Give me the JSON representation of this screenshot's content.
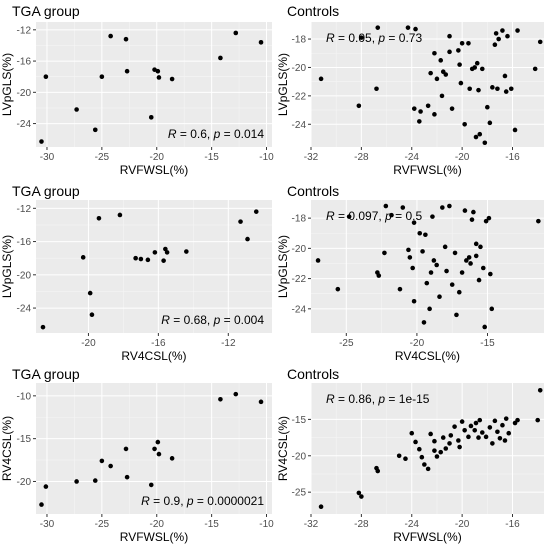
{
  "chart_data": [
    {
      "type": "scatter",
      "title": "TGA group",
      "xlabel": "RVFWSL(%)",
      "ylabel": "LVpGLS(%)",
      "xlim": [
        -31,
        -9.5
      ],
      "ylim": [
        -27,
        -11
      ],
      "xticks": [
        -30,
        -25,
        -20,
        -15,
        -10
      ],
      "yticks": [
        -24,
        -20,
        -16,
        -12
      ],
      "annotation": {
        "r": "0.6",
        "p": "0.014",
        "position": "bottom-right"
      },
      "points": [
        [
          -30.5,
          -26.3
        ],
        [
          -30.1,
          -18.0
        ],
        [
          -27.3,
          -22.2
        ],
        [
          -25.6,
          -24.8
        ],
        [
          -25.0,
          -18.0
        ],
        [
          -24.2,
          -12.8
        ],
        [
          -22.8,
          -13.2
        ],
        [
          -22.7,
          -17.3
        ],
        [
          -20.5,
          -23.2
        ],
        [
          -20.2,
          -17.1
        ],
        [
          -19.9,
          -17.3
        ],
        [
          -19.8,
          -18.1
        ],
        [
          -18.6,
          -18.3
        ],
        [
          -14.2,
          -15.6
        ],
        [
          -12.8,
          -12.4
        ],
        [
          -10.5,
          -13.6
        ]
      ]
    },
    {
      "type": "scatter",
      "title": "Controls",
      "xlabel": "RVFWSL(%)",
      "ylabel": "LVpGLS(%)",
      "xlim": [
        -32,
        -13.5
      ],
      "ylim": [
        -25.6,
        -16.8
      ],
      "xticks": [
        -32,
        -28,
        -24,
        -20,
        -16
      ],
      "yticks": [
        -24,
        -22,
        -20,
        -18
      ],
      "annotation": {
        "r": "0.05",
        "p": "0.73",
        "position": "top-left"
      },
      "points": [
        [
          -31.2,
          -20.8
        ],
        [
          -28.2,
          -22.7
        ],
        [
          -28.0,
          -17.9
        ],
        [
          -26.8,
          -21.5
        ],
        [
          -26.7,
          -17.2
        ],
        [
          -24.3,
          -17.2
        ],
        [
          -23.7,
          -17.3
        ],
        [
          -23.8,
          -22.9
        ],
        [
          -23.4,
          -23.8
        ],
        [
          -23.3,
          -23.1
        ],
        [
          -22.7,
          -22.7
        ],
        [
          -22.5,
          -20.4
        ],
        [
          -22.2,
          -23.3
        ],
        [
          -22.2,
          -19.0
        ],
        [
          -22.0,
          -20.8
        ],
        [
          -21.7,
          -19.5
        ],
        [
          -21.6,
          -22.0
        ],
        [
          -21.5,
          -20.3
        ],
        [
          -21.3,
          -20.5
        ],
        [
          -21.0,
          -18.9
        ],
        [
          -21.0,
          -17.8
        ],
        [
          -20.8,
          -22.9
        ],
        [
          -20.3,
          -18.8
        ],
        [
          -20.2,
          -19.8
        ],
        [
          -20.1,
          -21.1
        ],
        [
          -20.0,
          -18.3
        ],
        [
          -19.8,
          -24.0
        ],
        [
          -19.5,
          -18.3
        ],
        [
          -19.4,
          -21.5
        ],
        [
          -19.2,
          -20.1
        ],
        [
          -19.0,
          -20.0
        ],
        [
          -18.9,
          -24.9
        ],
        [
          -18.8,
          -19.7
        ],
        [
          -18.7,
          -21.6
        ],
        [
          -18.6,
          -24.7
        ],
        [
          -18.4,
          -20.1
        ],
        [
          -18.2,
          -25.3
        ],
        [
          -18.0,
          -22.8
        ],
        [
          -17.8,
          -23.9
        ],
        [
          -17.6,
          -21.4
        ],
        [
          -17.4,
          -18.4
        ],
        [
          -17.3,
          -17.6
        ],
        [
          -17.2,
          -21.5
        ],
        [
          -17.1,
          -18.0
        ],
        [
          -16.8,
          -17.4
        ],
        [
          -16.6,
          -20.6
        ],
        [
          -16.5,
          -21.7
        ],
        [
          -16.4,
          -17.8
        ],
        [
          -16.1,
          -21.5
        ],
        [
          -15.8,
          -24.4
        ],
        [
          -15.6,
          -17.4
        ],
        [
          -14.2,
          -20.1
        ],
        [
          -13.8,
          -18.2
        ]
      ]
    },
    {
      "type": "scatter",
      "title": "TGA group",
      "xlabel": "RV4CSL(%)",
      "ylabel": "LVpGLS(%)",
      "xlim": [
        -23,
        -9.5
      ],
      "ylim": [
        -27,
        -11
      ],
      "xticks": [
        -20,
        -16,
        -12
      ],
      "yticks": [
        -24,
        -20,
        -16,
        -12
      ],
      "annotation": {
        "r": "0.68",
        "p": "0.004",
        "position": "bottom-right"
      },
      "points": [
        [
          -22.6,
          -26.3
        ],
        [
          -20.3,
          -17.9
        ],
        [
          -19.9,
          -22.2
        ],
        [
          -19.8,
          -24.8
        ],
        [
          -19.4,
          -13.2
        ],
        [
          -18.2,
          -12.8
        ],
        [
          -17.3,
          -18.0
        ],
        [
          -17.0,
          -18.1
        ],
        [
          -16.6,
          -18.2
        ],
        [
          -16.2,
          -17.3
        ],
        [
          -15.7,
          -18.3
        ],
        [
          -15.6,
          -16.9
        ],
        [
          -15.5,
          -17.3
        ],
        [
          -14.4,
          -17.2
        ],
        [
          -11.3,
          -13.6
        ],
        [
          -10.9,
          -15.7
        ],
        [
          -10.4,
          -12.4
        ]
      ]
    },
    {
      "type": "scatter",
      "title": "Controls",
      "xlabel": "RV4CSL(%)",
      "ylabel": "LVpGLS(%)",
      "xlim": [
        -27.5,
        -11
      ],
      "ylim": [
        -25.6,
        -16.8
      ],
      "xticks": [
        -25,
        -20,
        -15
      ],
      "yticks": [
        -24,
        -22,
        -20,
        -18
      ],
      "annotation": {
        "r": "0.097",
        "p": "0.5",
        "position": "top-left"
      },
      "points": [
        [
          -27.0,
          -20.8
        ],
        [
          -25.6,
          -22.7
        ],
        [
          -24.8,
          -17.9
        ],
        [
          -22.8,
          -21.6
        ],
        [
          -22.7,
          -21.8
        ],
        [
          -22.3,
          -20.3
        ],
        [
          -22.2,
          -17.2
        ],
        [
          -21.8,
          -17.8
        ],
        [
          -21.2,
          -22.7
        ],
        [
          -21.0,
          -17.3
        ],
        [
          -20.6,
          -20.1
        ],
        [
          -20.5,
          -20.6
        ],
        [
          -20.3,
          -21.3
        ],
        [
          -20.2,
          -23.5
        ],
        [
          -20.2,
          -18.3
        ],
        [
          -19.8,
          -19.0
        ],
        [
          -19.6,
          -20.2
        ],
        [
          -19.5,
          -24.9
        ],
        [
          -19.4,
          -19.1
        ],
        [
          -19.3,
          -22.3
        ],
        [
          -19.1,
          -24.0
        ],
        [
          -19.0,
          -21.6
        ],
        [
          -18.9,
          -17.9
        ],
        [
          -18.8,
          -20.8
        ],
        [
          -18.6,
          -21.1
        ],
        [
          -18.4,
          -23.2
        ],
        [
          -18.2,
          -17.3
        ],
        [
          -18.0,
          -19.9
        ],
        [
          -17.9,
          -21.5
        ],
        [
          -17.7,
          -17.2
        ],
        [
          -17.5,
          -22.4
        ],
        [
          -17.3,
          -20.3
        ],
        [
          -17.2,
          -24.4
        ],
        [
          -17.0,
          -22.9
        ],
        [
          -16.8,
          -21.6
        ],
        [
          -16.6,
          -17.5
        ],
        [
          -16.5,
          -20.8
        ],
        [
          -16.3,
          -20.6
        ],
        [
          -16.2,
          -21.0
        ],
        [
          -16.1,
          -18.1
        ],
        [
          -16.0,
          -17.6
        ],
        [
          -15.8,
          -19.7
        ],
        [
          -15.8,
          -20.5
        ],
        [
          -15.6,
          -22.1
        ],
        [
          -15.5,
          -19.9
        ],
        [
          -15.3,
          -21.3
        ],
        [
          -15.2,
          -25.2
        ],
        [
          -15.1,
          -18.2
        ],
        [
          -14.9,
          -18.0
        ],
        [
          -14.8,
          -21.7
        ],
        [
          -14.7,
          -24.0
        ],
        [
          -11.4,
          -18.2
        ]
      ]
    },
    {
      "type": "scatter",
      "title": "TGA group",
      "xlabel": "RVFWSL(%)",
      "ylabel": "RV4CSL(%)",
      "xlim": [
        -31,
        -9.5
      ],
      "ylim": [
        -23.8,
        -8.5
      ],
      "xticks": [
        -30,
        -25,
        -20,
        -15,
        -10
      ],
      "yticks": [
        -20,
        -15,
        -10
      ],
      "annotation": {
        "r": "0.9",
        "p": "0.0000021",
        "position": "bottom-right"
      },
      "points": [
        [
          -30.5,
          -22.7
        ],
        [
          -30.1,
          -20.6
        ],
        [
          -27.3,
          -20.0
        ],
        [
          -25.6,
          -19.9
        ],
        [
          -25.0,
          -17.6
        ],
        [
          -24.2,
          -18.2
        ],
        [
          -22.8,
          -16.2
        ],
        [
          -22.7,
          -19.5
        ],
        [
          -20.5,
          -20.4
        ],
        [
          -20.2,
          -16.2
        ],
        [
          -19.9,
          -15.4
        ],
        [
          -19.8,
          -16.8
        ],
        [
          -18.6,
          -17.3
        ],
        [
          -14.2,
          -10.4
        ],
        [
          -12.8,
          -9.8
        ],
        [
          -10.5,
          -10.7
        ]
      ]
    },
    {
      "type": "scatter",
      "title": "Controls",
      "xlabel": "RVFWSL(%)",
      "ylabel": "RV4CSL(%)",
      "xlim": [
        -32,
        -13.5
      ],
      "ylim": [
        -28,
        -10
      ],
      "xticks": [
        -32,
        -28,
        -24,
        -20,
        -16
      ],
      "yticks": [
        -25,
        -20,
        -15
      ],
      "annotation": {
        "r": "0.86",
        "p": "1e-15",
        "position": "top-left"
      },
      "points": [
        [
          -31.2,
          -27.0
        ],
        [
          -28.2,
          -25.1
        ],
        [
          -28.0,
          -25.6
        ],
        [
          -26.8,
          -21.7
        ],
        [
          -26.7,
          -22.1
        ],
        [
          -25.0,
          -20.0
        ],
        [
          -24.5,
          -20.4
        ],
        [
          -24.0,
          -16.9
        ],
        [
          -23.7,
          -18.1
        ],
        [
          -23.4,
          -19.1
        ],
        [
          -23.2,
          -20.2
        ],
        [
          -23.0,
          -21.2
        ],
        [
          -22.7,
          -21.8
        ],
        [
          -22.5,
          -17.0
        ],
        [
          -22.2,
          -18.0
        ],
        [
          -22.2,
          -19.3
        ],
        [
          -22.0,
          -20.1
        ],
        [
          -21.7,
          -19.5
        ],
        [
          -21.5,
          -17.5
        ],
        [
          -21.3,
          -19.0
        ],
        [
          -21.0,
          -18.3
        ],
        [
          -20.9,
          -17.2
        ],
        [
          -20.6,
          -16.0
        ],
        [
          -20.3,
          -17.9
        ],
        [
          -20.2,
          -18.8
        ],
        [
          -20.0,
          -15.3
        ],
        [
          -19.8,
          -16.5
        ],
        [
          -19.5,
          -17.4
        ],
        [
          -19.3,
          -15.9
        ],
        [
          -19.0,
          -16.5
        ],
        [
          -18.9,
          -15.5
        ],
        [
          -18.7,
          -17.5
        ],
        [
          -18.6,
          -15.1
        ],
        [
          -18.4,
          -16.8
        ],
        [
          -18.1,
          -17.4
        ],
        [
          -17.8,
          -16.1
        ],
        [
          -17.6,
          -18.3
        ],
        [
          -17.4,
          -15.2
        ],
        [
          -17.2,
          -16.7
        ],
        [
          -17.0,
          -17.6
        ],
        [
          -16.8,
          -15.8
        ],
        [
          -16.6,
          -17.9
        ],
        [
          -16.5,
          -14.9
        ],
        [
          -16.3,
          -16.9
        ],
        [
          -15.8,
          -15.5
        ],
        [
          -15.6,
          -15.1
        ],
        [
          -14.0,
          -15.1
        ],
        [
          -13.8,
          -11.0
        ]
      ]
    }
  ]
}
